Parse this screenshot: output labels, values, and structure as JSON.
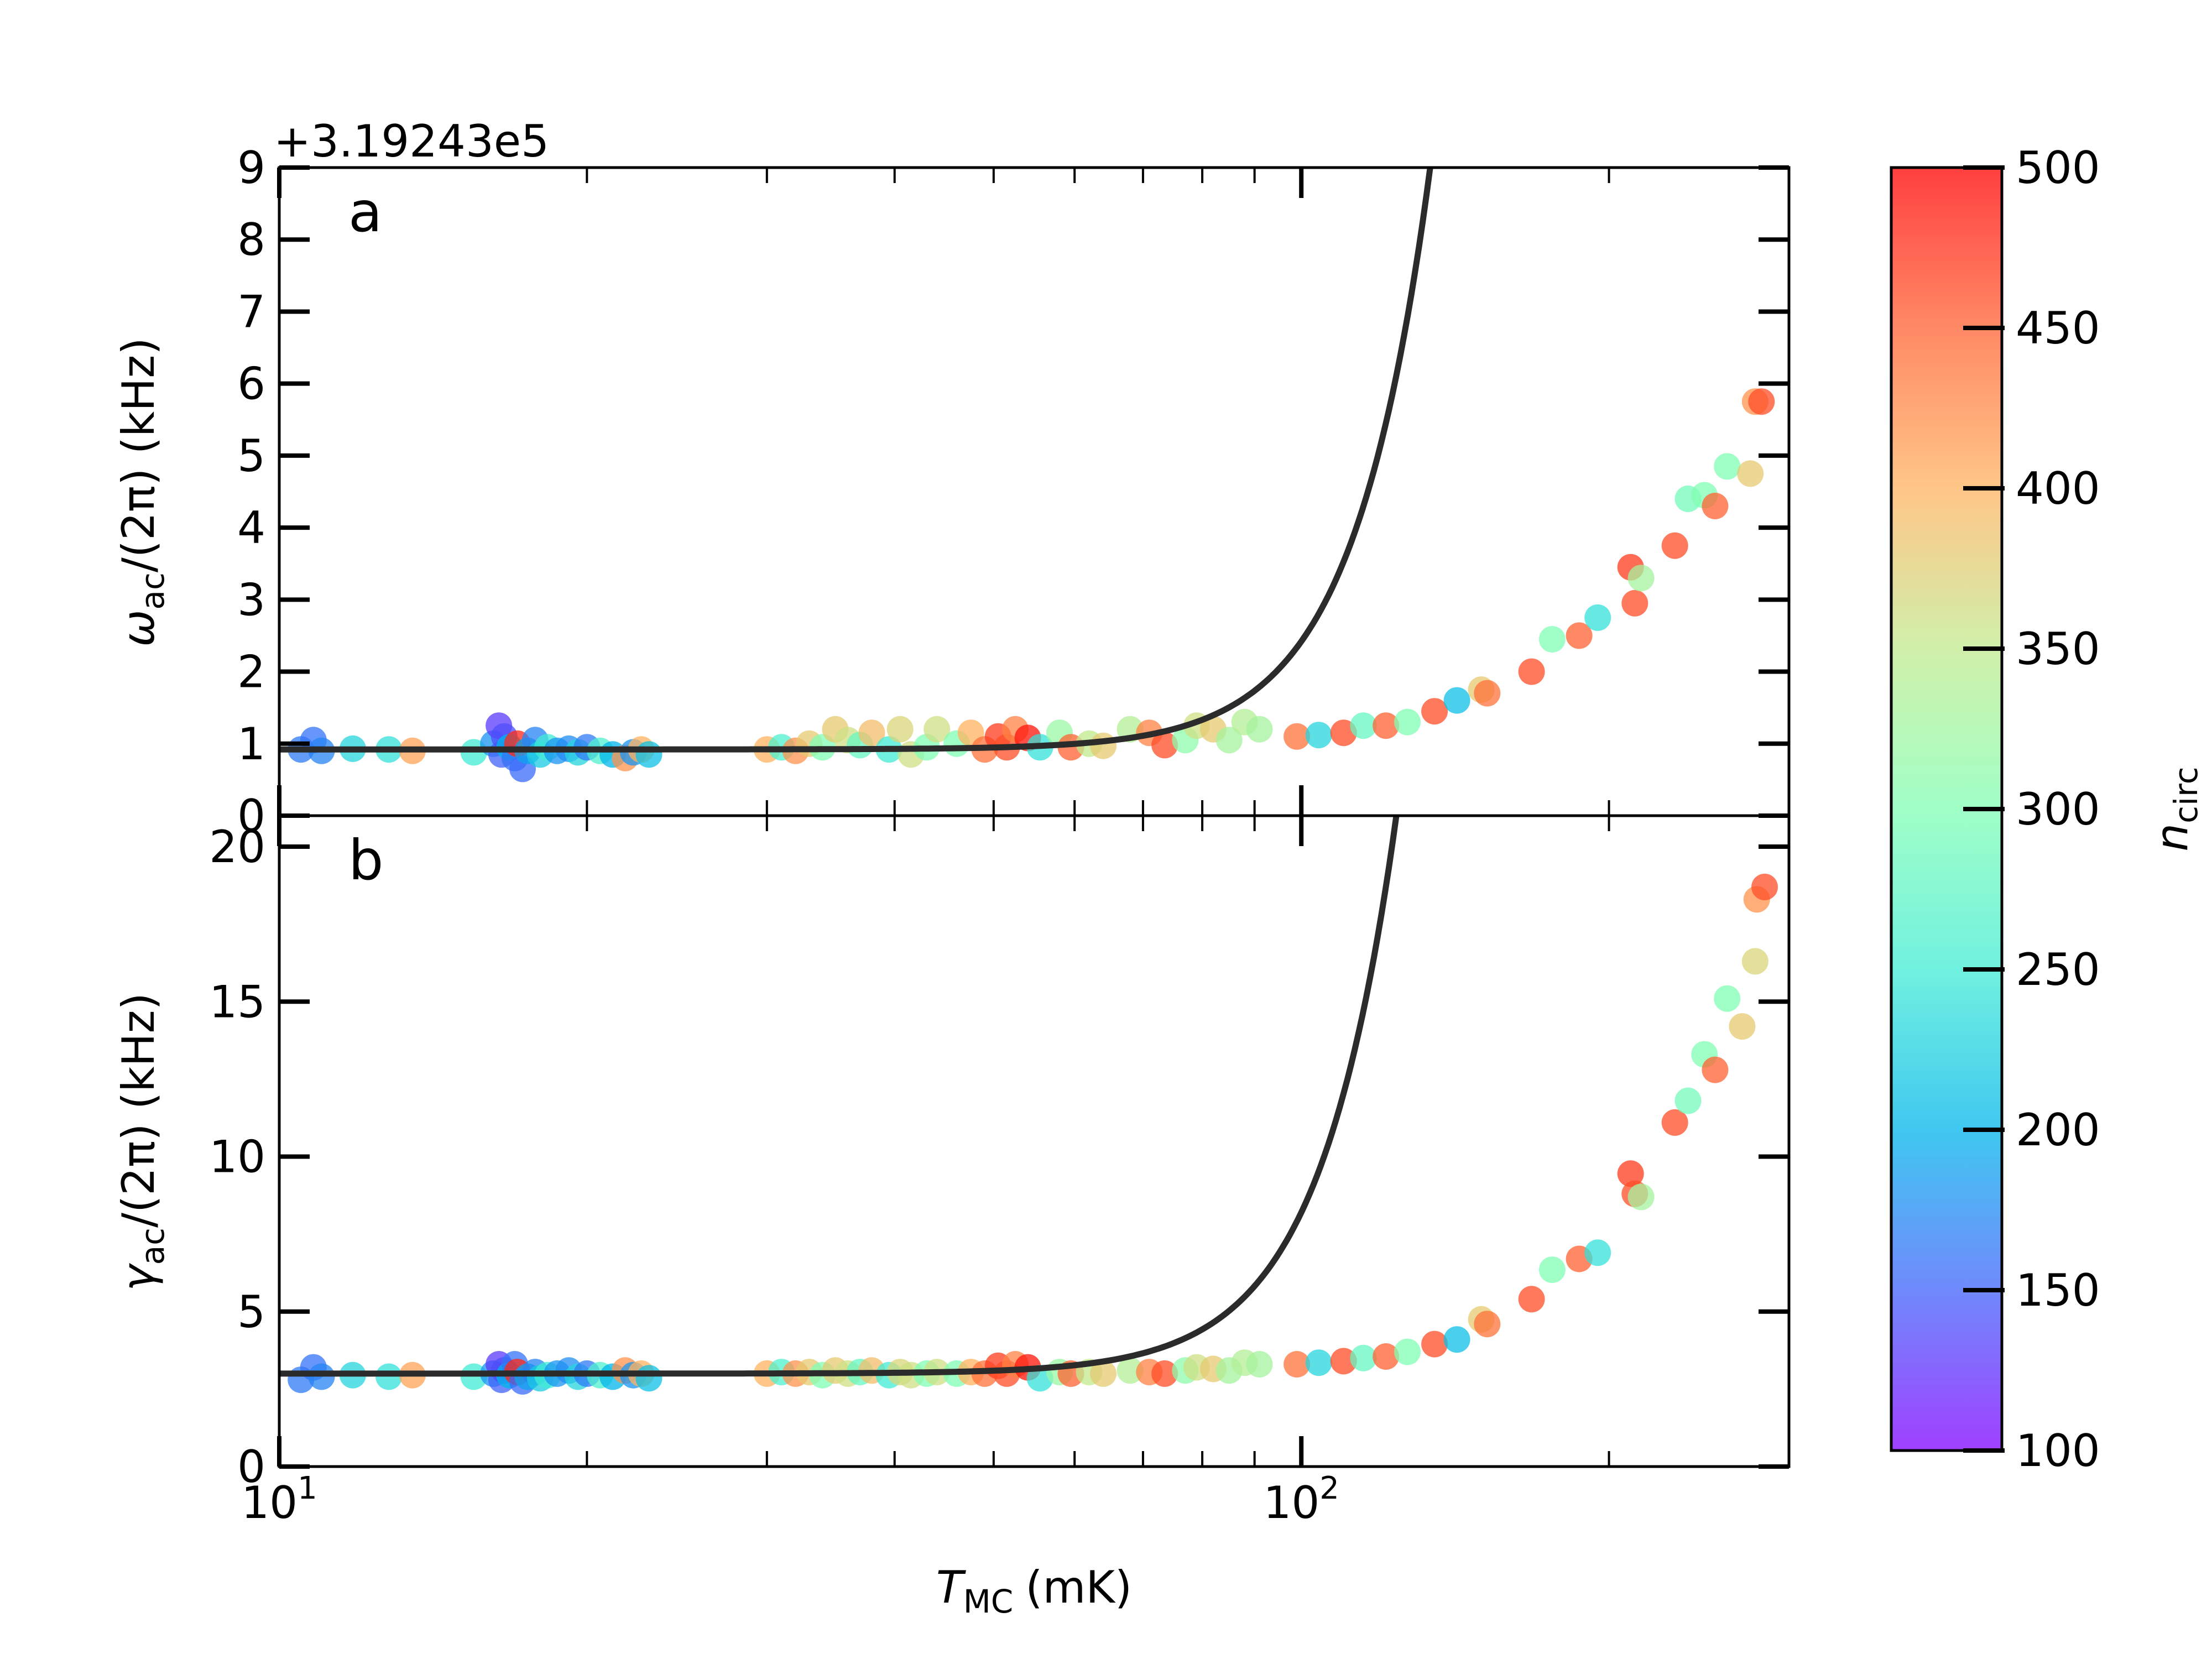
{
  "colors": {
    "fit_line": "#2b2b2b",
    "axis": "#000000",
    "colormap_stops": [
      "#8000ff",
      "#4062fa",
      "#00b5eb",
      "#40ecd4",
      "#80ffb4",
      "#c0eb8d",
      "#ffb360",
      "#ff6231",
      "#ff0000"
    ]
  },
  "chart_data": [
    {
      "type": "scatter",
      "panel": "a",
      "panel_label": "a",
      "offset_text": "+3.19243e5",
      "xlabel": "T_MC (mK)",
      "xlabel_main": "T",
      "xlabel_sub": "MC",
      "xlabel_unit": "(mK)",
      "ylabel": "ω_ac/(2π) (kHz)",
      "ylabel_sym": "ω",
      "ylabel_sub": "ac",
      "ylabel_rest": "/(2π) (kHz)",
      "xscale": "log",
      "xlim": [
        10,
        300
      ],
      "ylim": [
        0,
        9
      ],
      "yticks": [
        0,
        1,
        2,
        3,
        4,
        5,
        6,
        7,
        8,
        9
      ],
      "ytick_labels": [
        "0",
        "1",
        "2",
        "3",
        "4",
        "5",
        "6",
        "7",
        "8",
        "9"
      ],
      "fit": {
        "baseline": 0.92,
        "amplitude": 1.5,
        "scale_T": 10000,
        "exponent": 5.8
      },
      "points": [
        {
          "x": 10.5,
          "y": 0.92,
          "n": 165
        },
        {
          "x": 10.8,
          "y": 1.05,
          "n": 160
        },
        {
          "x": 11.0,
          "y": 0.9,
          "n": 170
        },
        {
          "x": 11.8,
          "y": 0.93,
          "n": 230
        },
        {
          "x": 12.8,
          "y": 0.92,
          "n": 240
        },
        {
          "x": 13.5,
          "y": 0.9,
          "n": 410
        },
        {
          "x": 15.5,
          "y": 0.88,
          "n": 250
        },
        {
          "x": 16.2,
          "y": 1.0,
          "n": 180
        },
        {
          "x": 16.4,
          "y": 1.25,
          "n": 130
        },
        {
          "x": 16.5,
          "y": 0.85,
          "n": 150
        },
        {
          "x": 16.6,
          "y": 1.1,
          "n": 140
        },
        {
          "x": 16.8,
          "y": 0.95,
          "n": 200
        },
        {
          "x": 17.0,
          "y": 0.8,
          "n": 160
        },
        {
          "x": 17.1,
          "y": 1.0,
          "n": 480
        },
        {
          "x": 17.3,
          "y": 0.65,
          "n": 155
        },
        {
          "x": 17.5,
          "y": 0.9,
          "n": 190
        },
        {
          "x": 17.8,
          "y": 1.05,
          "n": 170
        },
        {
          "x": 18.0,
          "y": 0.85,
          "n": 220
        },
        {
          "x": 18.3,
          "y": 0.95,
          "n": 250
        },
        {
          "x": 18.7,
          "y": 0.9,
          "n": 180
        },
        {
          "x": 19.2,
          "y": 0.93,
          "n": 175
        },
        {
          "x": 19.6,
          "y": 0.88,
          "n": 230
        },
        {
          "x": 20.0,
          "y": 0.95,
          "n": 165
        },
        {
          "x": 20.6,
          "y": 0.9,
          "n": 260
        },
        {
          "x": 21.2,
          "y": 0.85,
          "n": 200
        },
        {
          "x": 21.8,
          "y": 0.8,
          "n": 420
        },
        {
          "x": 22.2,
          "y": 0.88,
          "n": 180
        },
        {
          "x": 22.6,
          "y": 0.92,
          "n": 400
        },
        {
          "x": 23.0,
          "y": 0.85,
          "n": 210
        },
        {
          "x": 30.0,
          "y": 0.92,
          "n": 400
        },
        {
          "x": 31.0,
          "y": 0.95,
          "n": 260
        },
        {
          "x": 32.0,
          "y": 0.9,
          "n": 420
        },
        {
          "x": 33.0,
          "y": 1.0,
          "n": 380
        },
        {
          "x": 34.0,
          "y": 0.95,
          "n": 300
        },
        {
          "x": 35.0,
          "y": 1.2,
          "n": 380
        },
        {
          "x": 36.0,
          "y": 1.05,
          "n": 360
        },
        {
          "x": 37.0,
          "y": 0.98,
          "n": 280
        },
        {
          "x": 38.0,
          "y": 1.15,
          "n": 390
        },
        {
          "x": 39.5,
          "y": 0.92,
          "n": 250
        },
        {
          "x": 40.5,
          "y": 1.2,
          "n": 370
        },
        {
          "x": 41.5,
          "y": 0.85,
          "n": 360
        },
        {
          "x": 43.0,
          "y": 0.95,
          "n": 300
        },
        {
          "x": 44.0,
          "y": 1.2,
          "n": 360
        },
        {
          "x": 46.0,
          "y": 1.0,
          "n": 300
        },
        {
          "x": 47.5,
          "y": 1.15,
          "n": 400
        },
        {
          "x": 49.0,
          "y": 0.92,
          "n": 440
        },
        {
          "x": 50.5,
          "y": 1.1,
          "n": 470
        },
        {
          "x": 51.5,
          "y": 0.95,
          "n": 460
        },
        {
          "x": 52.5,
          "y": 1.2,
          "n": 430
        },
        {
          "x": 54.0,
          "y": 1.08,
          "n": 490
        },
        {
          "x": 55.5,
          "y": 0.95,
          "n": 240
        },
        {
          "x": 58.0,
          "y": 1.15,
          "n": 320
        },
        {
          "x": 59.5,
          "y": 0.95,
          "n": 450
        },
        {
          "x": 62.0,
          "y": 1.0,
          "n": 350
        },
        {
          "x": 64.0,
          "y": 0.97,
          "n": 380
        },
        {
          "x": 68.0,
          "y": 1.2,
          "n": 340
        },
        {
          "x": 71.0,
          "y": 1.15,
          "n": 430
        },
        {
          "x": 73.5,
          "y": 0.98,
          "n": 460
        },
        {
          "x": 77.0,
          "y": 1.05,
          "n": 310
        },
        {
          "x": 79.0,
          "y": 1.25,
          "n": 360
        },
        {
          "x": 82.0,
          "y": 1.2,
          "n": 380
        },
        {
          "x": 85.0,
          "y": 1.05,
          "n": 330
        },
        {
          "x": 88.0,
          "y": 1.3,
          "n": 340
        },
        {
          "x": 91.0,
          "y": 1.2,
          "n": 330
        },
        {
          "x": 99.0,
          "y": 1.1,
          "n": 440
        },
        {
          "x": 104.0,
          "y": 1.12,
          "n": 230
        },
        {
          "x": 110.0,
          "y": 1.15,
          "n": 460
        },
        {
          "x": 115.0,
          "y": 1.25,
          "n": 280
        },
        {
          "x": 121.0,
          "y": 1.25,
          "n": 450
        },
        {
          "x": 127.0,
          "y": 1.3,
          "n": 300
        },
        {
          "x": 135.0,
          "y": 1.45,
          "n": 460
        },
        {
          "x": 142.0,
          "y": 1.6,
          "n": 210
        },
        {
          "x": 150.0,
          "y": 1.75,
          "n": 380
        },
        {
          "x": 152.0,
          "y": 1.7,
          "n": 440
        },
        {
          "x": 168.0,
          "y": 2.0,
          "n": 460
        },
        {
          "x": 176.0,
          "y": 2.45,
          "n": 300
        },
        {
          "x": 187.0,
          "y": 2.5,
          "n": 450
        },
        {
          "x": 195.0,
          "y": 2.75,
          "n": 240
        },
        {
          "x": 210.0,
          "y": 3.45,
          "n": 470
        },
        {
          "x": 212.0,
          "y": 2.95,
          "n": 460
        },
        {
          "x": 215.0,
          "y": 3.3,
          "n": 330
        },
        {
          "x": 232.0,
          "y": 3.75,
          "n": 460
        },
        {
          "x": 239.0,
          "y": 4.4,
          "n": 290
        },
        {
          "x": 248.0,
          "y": 4.45,
          "n": 300
        },
        {
          "x": 254.0,
          "y": 4.3,
          "n": 450
        },
        {
          "x": 261.0,
          "y": 4.85,
          "n": 300
        },
        {
          "x": 275.0,
          "y": 4.75,
          "n": 380
        },
        {
          "x": 278.0,
          "y": 5.75,
          "n": 420
        },
        {
          "x": 282.0,
          "y": 5.75,
          "n": 460
        }
      ]
    },
    {
      "type": "scatter",
      "panel": "b",
      "panel_label": "b",
      "xlabel": "T_MC (mK)",
      "ylabel": "γ_ac/(2π) (kHz)",
      "ylabel_sym": "γ",
      "ylabel_sub": "ac",
      "ylabel_rest": "/(2π) (kHz)",
      "xscale": "log",
      "xlim": [
        10,
        300
      ],
      "ylim": [
        0,
        21
      ],
      "yticks": [
        0,
        5,
        10,
        15,
        20
      ],
      "ytick_labels": [
        "0",
        "5",
        "10",
        "15",
        "20"
      ],
      "xtick_major": [
        10,
        100
      ],
      "xtick_labels": [
        {
          "base": "10",
          "exp": "1"
        },
        {
          "base": "10",
          "exp": "2"
        }
      ],
      "fit": {
        "baseline": 3.0,
        "amplitude": 5.2,
        "scale_T": 10000,
        "exponent": 5.8
      },
      "points": [
        {
          "x": 10.5,
          "y": 2.8,
          "n": 165
        },
        {
          "x": 10.8,
          "y": 3.2,
          "n": 160
        },
        {
          "x": 11.0,
          "y": 2.9,
          "n": 170
        },
        {
          "x": 11.8,
          "y": 2.95,
          "n": 230
        },
        {
          "x": 12.8,
          "y": 2.9,
          "n": 240
        },
        {
          "x": 13.5,
          "y": 2.95,
          "n": 410
        },
        {
          "x": 15.5,
          "y": 2.9,
          "n": 250
        },
        {
          "x": 16.2,
          "y": 3.0,
          "n": 180
        },
        {
          "x": 16.4,
          "y": 3.3,
          "n": 130
        },
        {
          "x": 16.5,
          "y": 2.8,
          "n": 150
        },
        {
          "x": 16.6,
          "y": 3.1,
          "n": 140
        },
        {
          "x": 16.8,
          "y": 2.95,
          "n": 200
        },
        {
          "x": 17.0,
          "y": 3.3,
          "n": 160
        },
        {
          "x": 17.1,
          "y": 3.05,
          "n": 480
        },
        {
          "x": 17.3,
          "y": 2.75,
          "n": 155
        },
        {
          "x": 17.5,
          "y": 2.9,
          "n": 190
        },
        {
          "x": 17.8,
          "y": 3.05,
          "n": 170
        },
        {
          "x": 18.0,
          "y": 2.85,
          "n": 220
        },
        {
          "x": 18.3,
          "y": 2.95,
          "n": 250
        },
        {
          "x": 18.7,
          "y": 3.0,
          "n": 180
        },
        {
          "x": 19.2,
          "y": 3.1,
          "n": 175
        },
        {
          "x": 19.6,
          "y": 2.9,
          "n": 230
        },
        {
          "x": 20.0,
          "y": 3.0,
          "n": 165
        },
        {
          "x": 20.6,
          "y": 2.95,
          "n": 260
        },
        {
          "x": 21.2,
          "y": 2.9,
          "n": 200
        },
        {
          "x": 21.8,
          "y": 3.1,
          "n": 420
        },
        {
          "x": 22.2,
          "y": 2.95,
          "n": 180
        },
        {
          "x": 22.6,
          "y": 3.0,
          "n": 400
        },
        {
          "x": 23.0,
          "y": 2.85,
          "n": 210
        },
        {
          "x": 30.0,
          "y": 3.0,
          "n": 400
        },
        {
          "x": 31.0,
          "y": 3.05,
          "n": 260
        },
        {
          "x": 32.0,
          "y": 3.0,
          "n": 420
        },
        {
          "x": 33.0,
          "y": 3.05,
          "n": 380
        },
        {
          "x": 34.0,
          "y": 2.95,
          "n": 300
        },
        {
          "x": 35.0,
          "y": 3.1,
          "n": 380
        },
        {
          "x": 36.0,
          "y": 3.0,
          "n": 360
        },
        {
          "x": 37.0,
          "y": 3.05,
          "n": 280
        },
        {
          "x": 38.0,
          "y": 3.1,
          "n": 390
        },
        {
          "x": 39.5,
          "y": 2.95,
          "n": 250
        },
        {
          "x": 40.5,
          "y": 3.05,
          "n": 370
        },
        {
          "x": 41.5,
          "y": 2.95,
          "n": 360
        },
        {
          "x": 43.0,
          "y": 3.0,
          "n": 300
        },
        {
          "x": 44.0,
          "y": 3.05,
          "n": 360
        },
        {
          "x": 46.0,
          "y": 3.0,
          "n": 300
        },
        {
          "x": 47.5,
          "y": 3.05,
          "n": 400
        },
        {
          "x": 49.0,
          "y": 3.0,
          "n": 440
        },
        {
          "x": 50.5,
          "y": 3.25,
          "n": 470
        },
        {
          "x": 51.5,
          "y": 3.0,
          "n": 460
        },
        {
          "x": 52.5,
          "y": 3.3,
          "n": 430
        },
        {
          "x": 54.0,
          "y": 3.2,
          "n": 490
        },
        {
          "x": 55.5,
          "y": 2.85,
          "n": 240
        },
        {
          "x": 58.0,
          "y": 3.05,
          "n": 320
        },
        {
          "x": 59.5,
          "y": 3.0,
          "n": 450
        },
        {
          "x": 62.0,
          "y": 3.05,
          "n": 350
        },
        {
          "x": 64.0,
          "y": 3.0,
          "n": 380
        },
        {
          "x": 68.0,
          "y": 3.1,
          "n": 340
        },
        {
          "x": 71.0,
          "y": 3.05,
          "n": 430
        },
        {
          "x": 73.5,
          "y": 3.0,
          "n": 460
        },
        {
          "x": 77.0,
          "y": 3.1,
          "n": 310
        },
        {
          "x": 79.0,
          "y": 3.2,
          "n": 360
        },
        {
          "x": 82.0,
          "y": 3.15,
          "n": 380
        },
        {
          "x": 85.0,
          "y": 3.1,
          "n": 330
        },
        {
          "x": 88.0,
          "y": 3.35,
          "n": 340
        },
        {
          "x": 91.0,
          "y": 3.3,
          "n": 330
        },
        {
          "x": 99.0,
          "y": 3.3,
          "n": 440
        },
        {
          "x": 104.0,
          "y": 3.35,
          "n": 230
        },
        {
          "x": 110.0,
          "y": 3.4,
          "n": 460
        },
        {
          "x": 115.0,
          "y": 3.5,
          "n": 280
        },
        {
          "x": 121.0,
          "y": 3.55,
          "n": 450
        },
        {
          "x": 127.0,
          "y": 3.7,
          "n": 300
        },
        {
          "x": 135.0,
          "y": 3.95,
          "n": 460
        },
        {
          "x": 142.0,
          "y": 4.1,
          "n": 210
        },
        {
          "x": 150.0,
          "y": 4.75,
          "n": 380
        },
        {
          "x": 152.0,
          "y": 4.6,
          "n": 440
        },
        {
          "x": 168.0,
          "y": 5.4,
          "n": 460
        },
        {
          "x": 176.0,
          "y": 6.35,
          "n": 300
        },
        {
          "x": 187.0,
          "y": 6.7,
          "n": 450
        },
        {
          "x": 195.0,
          "y": 6.9,
          "n": 240
        },
        {
          "x": 210.0,
          "y": 9.45,
          "n": 470
        },
        {
          "x": 212.0,
          "y": 8.8,
          "n": 460
        },
        {
          "x": 215.0,
          "y": 8.7,
          "n": 330
        },
        {
          "x": 232.0,
          "y": 11.1,
          "n": 460
        },
        {
          "x": 239.0,
          "y": 11.8,
          "n": 290
        },
        {
          "x": 248.0,
          "y": 13.3,
          "n": 300
        },
        {
          "x": 254.0,
          "y": 12.8,
          "n": 450
        },
        {
          "x": 261.0,
          "y": 15.1,
          "n": 300
        },
        {
          "x": 270.0,
          "y": 14.2,
          "n": 380
        },
        {
          "x": 278.0,
          "y": 16.3,
          "n": 370
        },
        {
          "x": 279.0,
          "y": 18.3,
          "n": 420
        },
        {
          "x": 284.0,
          "y": 18.7,
          "n": 460
        }
      ]
    }
  ],
  "colorbar": {
    "label": "n_circ",
    "label_main": "n",
    "label_sub": "circ",
    "range": [
      100,
      500
    ],
    "ticks": [
      100,
      150,
      200,
      250,
      300,
      350,
      400,
      450,
      500
    ],
    "tick_labels": [
      "100",
      "150",
      "200",
      "250",
      "300",
      "350",
      "400",
      "450",
      "500"
    ]
  }
}
